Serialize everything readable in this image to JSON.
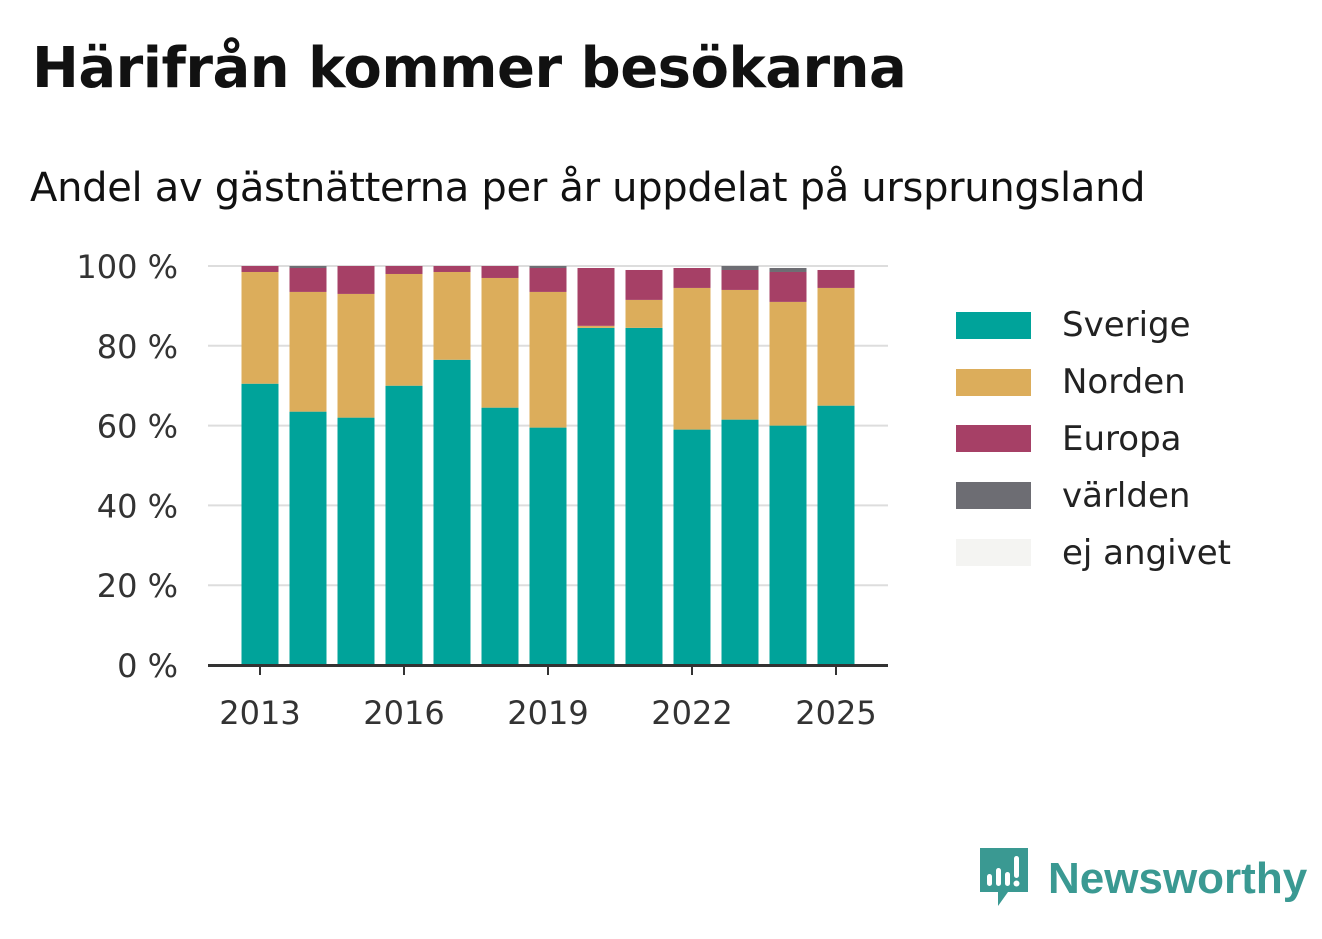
{
  "title": "Härifrån kommer besökarna",
  "subtitle": "Andel av gästnätterna per år uppdelat på ursprungsland",
  "chart_data": {
    "type": "bar",
    "stacked": true,
    "categories": [
      "2013",
      "2014",
      "2015",
      "2016",
      "2017",
      "2018",
      "2019",
      "2020",
      "2021",
      "2022",
      "2023",
      "2024",
      "2025"
    ],
    "x_tick_labels": [
      "2013",
      "2016",
      "2019",
      "2022",
      "2025"
    ],
    "y_ticks": [
      0,
      20,
      40,
      60,
      80,
      100
    ],
    "y_tick_suffix": " %",
    "ylim": [
      0,
      100
    ],
    "grid": true,
    "legend_position": "right",
    "series": [
      {
        "name": "Sverige",
        "color": "#00a39a",
        "values": [
          70.5,
          63.5,
          62,
          70,
          76.5,
          64.5,
          59.5,
          84.5,
          84.5,
          59,
          61.5,
          60,
          65
        ]
      },
      {
        "name": "Norden",
        "color": "#dcad5b",
        "values": [
          28,
          30,
          31,
          28,
          22,
          32.5,
          34,
          0.5,
          7,
          35.5,
          32.5,
          31,
          29.5
        ]
      },
      {
        "name": "Europa",
        "color": "#a64066",
        "values": [
          1.5,
          6,
          7,
          2,
          1.5,
          3,
          6,
          14.5,
          7.5,
          5,
          5,
          7.5,
          4.5
        ]
      },
      {
        "name": "världen",
        "color": "#6d6d73",
        "values": [
          0,
          0.5,
          0,
          0,
          0,
          0,
          0.5,
          0,
          0,
          0,
          1,
          1,
          0
        ]
      },
      {
        "name": "ej angivet",
        "color": "#f4f4f2",
        "values": [
          0,
          0,
          0,
          0,
          0,
          0,
          0,
          0,
          0,
          0,
          0,
          0,
          0
        ]
      }
    ]
  },
  "brand": {
    "name": "Newsworthy",
    "color": "#3a9992"
  }
}
